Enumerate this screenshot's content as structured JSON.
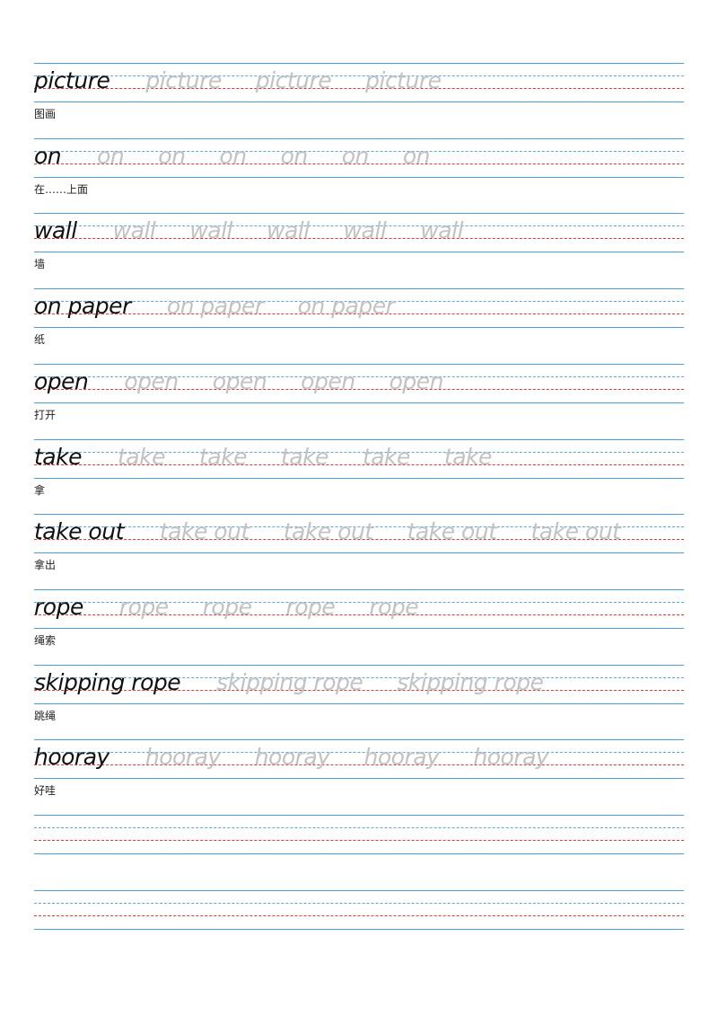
{
  "worksheet": {
    "entries": [
      {
        "word": "picture",
        "meaning": "图画",
        "traces": [
          "picture",
          "picture",
          "picture"
        ]
      },
      {
        "word": "on",
        "meaning": "在……上面",
        "traces": [
          "on",
          "on",
          "on",
          "on",
          "on",
          "on"
        ]
      },
      {
        "word": "wall",
        "meaning": "墙",
        "traces": [
          "wall",
          "wall",
          "wall",
          "wall",
          "wall"
        ]
      },
      {
        "word": "on paper",
        "meaning": "纸",
        "traces": [
          "on paper",
          "on paper"
        ]
      },
      {
        "word": "open",
        "meaning": "打开",
        "traces": [
          "open",
          "open",
          "open",
          "open"
        ]
      },
      {
        "word": "take",
        "meaning": "拿",
        "traces": [
          "take",
          "take",
          "take",
          "take",
          "take"
        ]
      },
      {
        "word": "take out",
        "meaning": "拿出",
        "traces": [
          "take out",
          "take out",
          "take out",
          "take out"
        ]
      },
      {
        "word": "rope",
        "meaning": "绳索",
        "traces": [
          "rope",
          "rope",
          "rope",
          "rope"
        ]
      },
      {
        "word": "skipping rope",
        "meaning": "跳绳",
        "traces": [
          "skipping rope",
          "skipping rope"
        ]
      },
      {
        "word": "hooray",
        "meaning": "好哇",
        "traces": [
          "hooray",
          "hooray",
          "hooray",
          "hooray"
        ]
      }
    ],
    "blank_rows": 2
  }
}
